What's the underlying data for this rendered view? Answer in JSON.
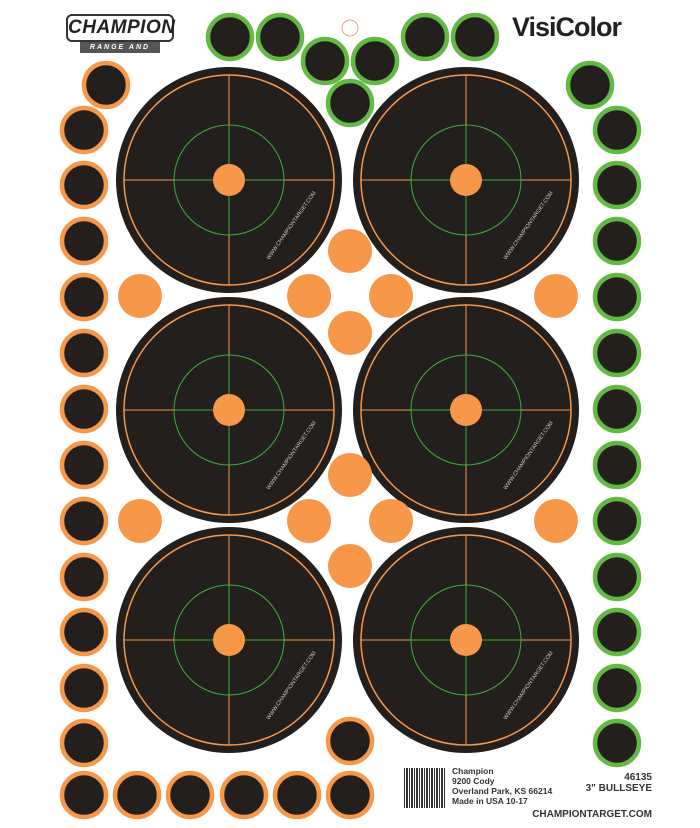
{
  "brand": {
    "logo": "CHAMPION",
    "tagline": "RANGE AND TARGET",
    "product_line": "VisiColor"
  },
  "target_url_text": "WWW.CHAMPIONTARGET.COM",
  "footer": {
    "address": [
      "Champion",
      "9200 Cody",
      "Overland Park, KS 66214",
      "Made in USA   10-17"
    ],
    "model": "46135",
    "description": "3\" BULLSEYE",
    "website": "CHAMPIONTARGET.COM"
  },
  "colors": {
    "black": "#231f1c",
    "orange": "#f7974a",
    "green": "#62b944",
    "crosshair": "#3fae3a"
  }
}
